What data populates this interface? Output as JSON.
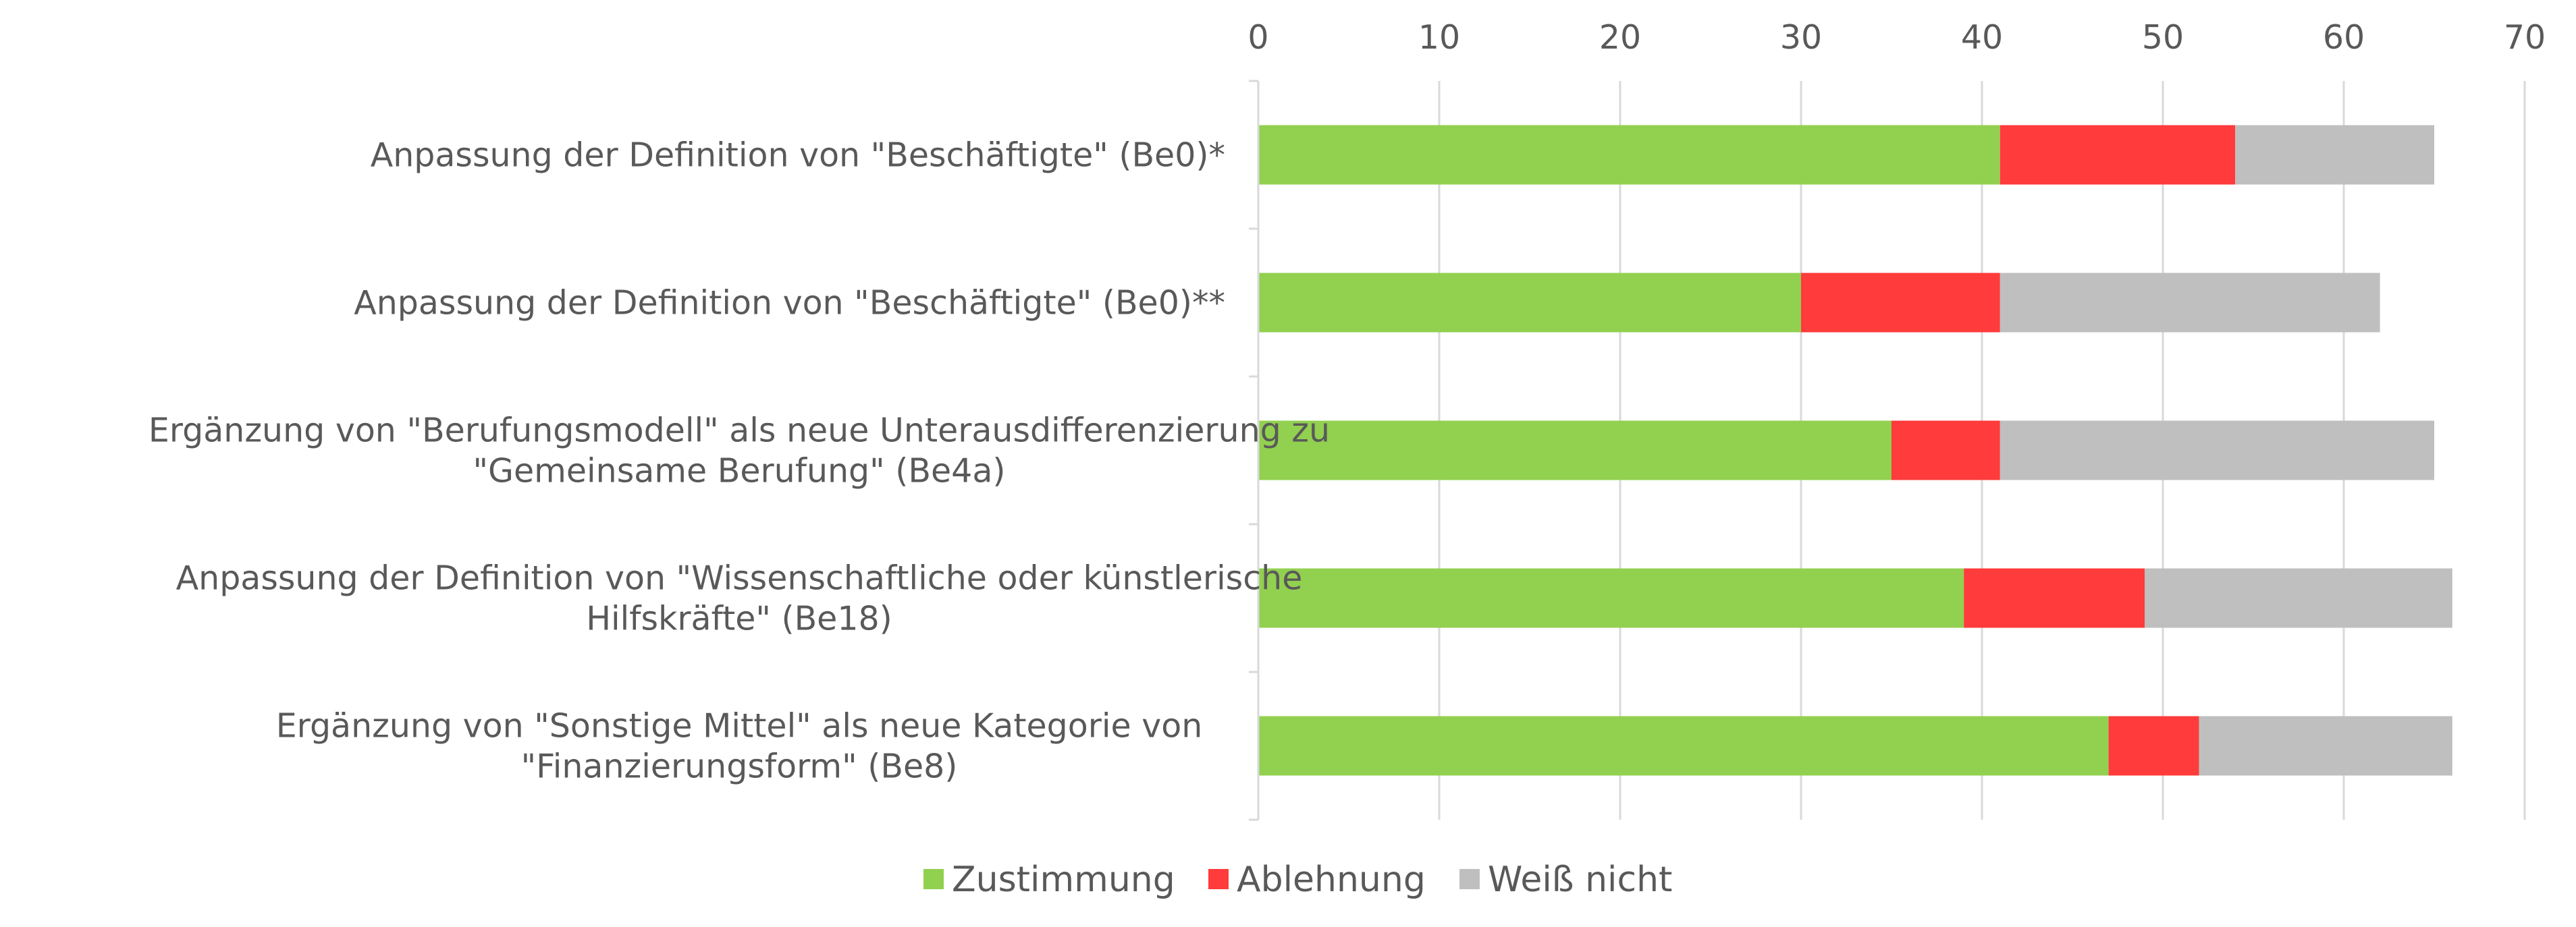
{
  "chart_data": {
    "type": "bar",
    "orientation": "horizontal",
    "stacked": true,
    "title": "",
    "xlabel": "",
    "ylabel": "",
    "xlim": [
      0,
      70
    ],
    "xticks": [
      0,
      10,
      20,
      30,
      40,
      50,
      60,
      70
    ],
    "x_axis_position": "top",
    "grid": true,
    "legend_position": "bottom",
    "categories": [
      [
        "Anpassung der Definition von \"Beschäftigte\" (Be0)*"
      ],
      [
        "Anpassung der Definition von \"Beschäftigte\" (Be0)**"
      ],
      [
        "Ergänzung von \"Berufungsmodell\" als neue Unterausdifferenzierung zu",
        "\"Gemeinsame Berufung\" (Be4a)"
      ],
      [
        "Anpassung der Definition von \"Wissenschaftliche oder künstlerische",
        "Hilfskräfte\" (Be18)"
      ],
      [
        "Ergänzung von \"Sonstige Mittel\" als neue Kategorie von",
        "\"Finanzierungsform\" (Be8)"
      ]
    ],
    "series": [
      {
        "name": "Zustimmung",
        "color": "#92d050",
        "values": [
          41,
          30,
          35,
          39,
          47
        ]
      },
      {
        "name": "Ablehnung",
        "color": "#ff3b3b",
        "values": [
          13,
          11,
          6,
          10,
          5
        ]
      },
      {
        "name": "Weiß nicht",
        "color": "#bfbfbf",
        "values": [
          11,
          21,
          24,
          17,
          14
        ]
      }
    ]
  }
}
